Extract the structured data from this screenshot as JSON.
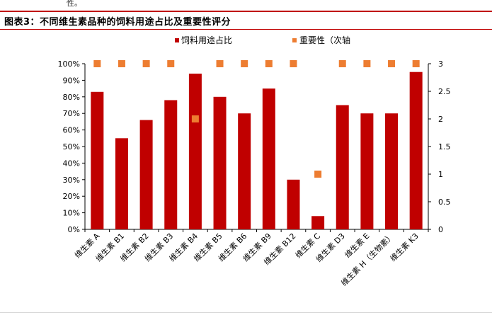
{
  "header": {
    "top_fragment": "性。",
    "figure_title": "图表3：不同维生素品种的饲料用途占比及重要性评分"
  },
  "colors": {
    "bar": "#c00000",
    "marker": "#ed7d31",
    "axis": "#000000",
    "title_rule": "#c00000"
  },
  "chart_data": {
    "type": "bar",
    "categories": [
      "维生素 A",
      "维生素 B1",
      "维生素 B2",
      "维生素 B3",
      "维生素 B4",
      "维生素 B5",
      "维生素 B6",
      "维生素 B9",
      "维生素 B12",
      "维生素 C",
      "维生素 D3",
      "维生素 E",
      "维生素 H（生物素）",
      "维生素 K3"
    ],
    "series": [
      {
        "name": "饲料用途占比",
        "kind": "bar",
        "axis": "left",
        "values": [
          83,
          55,
          66,
          78,
          94,
          80,
          70,
          85,
          30,
          8,
          75,
          70,
          70,
          95
        ]
      },
      {
        "name": "重要性（次轴",
        "kind": "marker",
        "axis": "right",
        "values": [
          3,
          3,
          3,
          3,
          2,
          3,
          3,
          3,
          3,
          1,
          3,
          3,
          3,
          3
        ]
      }
    ],
    "y_left": {
      "ylim": [
        0,
        100
      ],
      "ticks": [
        "0%",
        "10%",
        "20%",
        "30%",
        "40%",
        "50%",
        "60%",
        "70%",
        "80%",
        "90%",
        "100%"
      ]
    },
    "y_right": {
      "ylim": [
        0,
        3
      ],
      "ticks": [
        "0",
        "0.5",
        "1",
        "1.5",
        "2",
        "2.5",
        "3"
      ]
    },
    "legend_position": "top-center",
    "grid": false
  }
}
